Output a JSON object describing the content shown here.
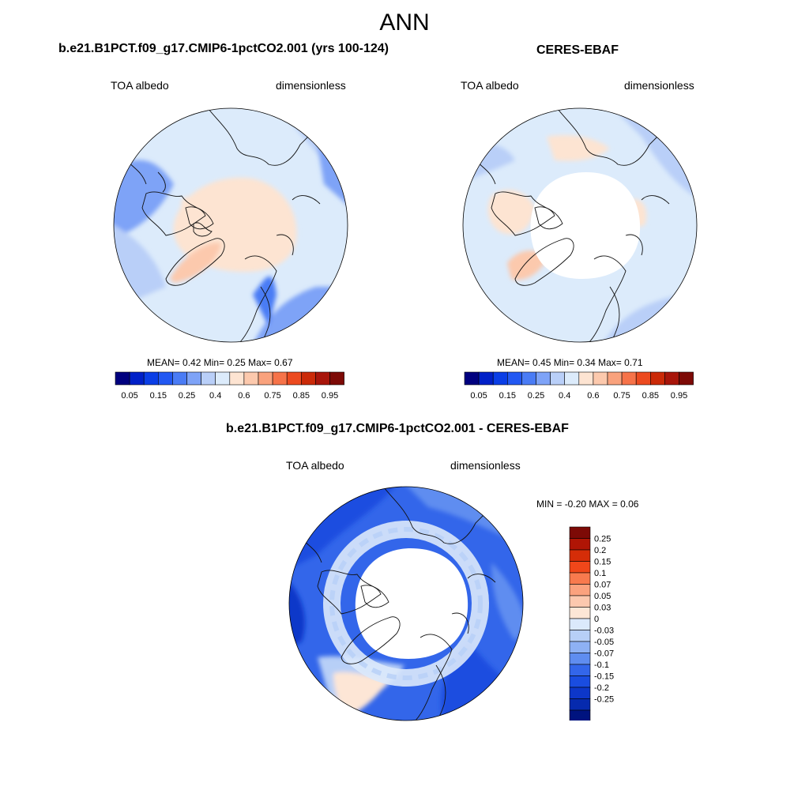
{
  "figure_title": "ANN",
  "colors": {
    "absolute_scale": [
      "#00007f",
      "#0020c8",
      "#0a3ee6",
      "#2258f2",
      "#4a7cf5",
      "#7ea3f7",
      "#b9cff8",
      "#dcebfb",
      "#fde4d2",
      "#fcc9ad",
      "#f9a27d",
      "#f67349",
      "#ec4a1f",
      "#cb2a08",
      "#a8150a",
      "#7d0a06"
    ],
    "difference_scale": [
      "#7d0a06",
      "#b01505",
      "#d52d08",
      "#f0471a",
      "#f87a4e",
      "#fba27e",
      "#fcc8ae",
      "#fde6d6",
      "#dbe9fb",
      "#b7cff7",
      "#8eb1f4",
      "#5f8df0",
      "#3366ea",
      "#1a4de0",
      "#0d37c9",
      "#062aae",
      "#00137f"
    ]
  },
  "chart_data": [
    {
      "type": "heatmap",
      "projection": "north polar stereographic",
      "title": "b.e21.B1PCT.f09_g17.CMIP6-1pctCO2.001 (yrs 100-124)",
      "left_label": "TOA albedo",
      "right_label": "dimensionless",
      "stats": {
        "mean_label": "MEAN=",
        "mean": "0.42",
        "min_label": "Min=",
        "min": "0.25",
        "max_label": "Max=",
        "max": "0.67"
      },
      "colorbar": {
        "orientation": "horizontal",
        "tick_labels": [
          "0.05",
          "0.15",
          "0.25",
          "0.4",
          "0.6",
          "0.75",
          "0.85",
          "0.95"
        ]
      }
    },
    {
      "type": "heatmap",
      "projection": "north polar stereographic",
      "title": "CERES-EBAF",
      "left_label": "TOA albedo",
      "right_label": "dimensionless",
      "stats": {
        "mean_label": "MEAN=",
        "mean": "0.45",
        "min_label": "Min=",
        "min": "0.34",
        "max_label": "Max=",
        "max": "0.71"
      },
      "colorbar": {
        "orientation": "horizontal",
        "tick_labels": [
          "0.05",
          "0.15",
          "0.25",
          "0.4",
          "0.6",
          "0.75",
          "0.85",
          "0.95"
        ]
      }
    },
    {
      "type": "heatmap",
      "projection": "north polar stereographic",
      "title": "b.e21.B1PCT.f09_g17.CMIP6-1pctCO2.001 - CERES-EBAF",
      "left_label": "TOA albedo",
      "right_label": "dimensionless",
      "stats": {
        "min_label": "MIN =",
        "min": "-0.20",
        "max_label": "MAX =",
        "max": "0.06"
      },
      "colorbar": {
        "orientation": "vertical",
        "tick_labels": [
          "0.25",
          "0.2",
          "0.15",
          "0.1",
          "0.07",
          "0.05",
          "0.03",
          "0",
          "-0.03",
          "-0.05",
          "-0.07",
          "-0.1",
          "-0.15",
          "-0.2",
          "-0.25"
        ]
      }
    }
  ]
}
